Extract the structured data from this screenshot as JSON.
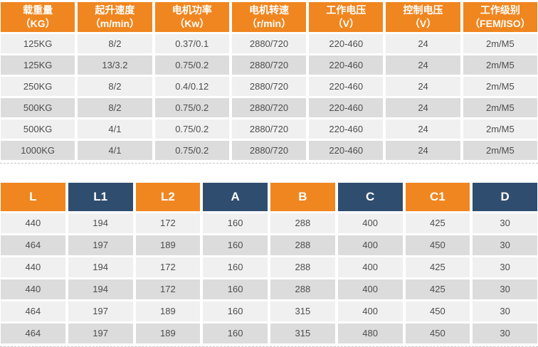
{
  "colors": {
    "orange": "#F0861F",
    "navy": "#2F4D6F",
    "row_light": "#F0F0F0",
    "row_dark": "#DCDCDC",
    "cell_text": "#4D4D4F",
    "header_text": "#FFFFFF",
    "dash": "#C4C4C4"
  },
  "spec_table": {
    "columns": [
      {
        "label": "载重量",
        "unit": "（KG）"
      },
      {
        "label": "起升速度",
        "unit": "（m/min）"
      },
      {
        "label": "电机功率",
        "unit": "（Kw）"
      },
      {
        "label": "电机转速",
        "unit": "（r/min）"
      },
      {
        "label": "工作电压",
        "unit": "（V）"
      },
      {
        "label": "控制电压",
        "unit": "（V）"
      },
      {
        "label": "工作级别",
        "unit": "（FEM/ISO）"
      }
    ],
    "rows": [
      [
        "125KG",
        "8/2",
        "0.37/0.1",
        "2880/720",
        "220-460",
        "24",
        "2m/M5"
      ],
      [
        "125KG",
        "13/3.2",
        "0.75/0.2",
        "2880/720",
        "220-460",
        "24",
        "2m/M5"
      ],
      [
        "250KG",
        "8/2",
        "0.4/0.12",
        "2880/720",
        "220-460",
        "24",
        "2m/M5"
      ],
      [
        "500KG",
        "8/2",
        "0.75/0.2",
        "2880/720",
        "220-460",
        "24",
        "2m/M5"
      ],
      [
        "500KG",
        "4/1",
        "0.75/0.2",
        "2880/720",
        "220-460",
        "24",
        "2m/M5"
      ],
      [
        "1000KG",
        "4/1",
        "0.75/0.2",
        "2880/720",
        "220-460",
        "24",
        "2m/M5"
      ]
    ]
  },
  "dimension_table": {
    "columns": [
      "L",
      "L1",
      "L2",
      "A",
      "B",
      "C",
      "C1",
      "D"
    ],
    "rows": [
      [
        "440",
        "194",
        "172",
        "160",
        "288",
        "400",
        "425",
        "30"
      ],
      [
        "464",
        "197",
        "189",
        "160",
        "288",
        "400",
        "450",
        "30"
      ],
      [
        "440",
        "194",
        "172",
        "160",
        "288",
        "400",
        "425",
        "30"
      ],
      [
        "440",
        "194",
        "172",
        "160",
        "288",
        "400",
        "425",
        "30"
      ],
      [
        "464",
        "197",
        "189",
        "160",
        "315",
        "400",
        "450",
        "30"
      ],
      [
        "464",
        "197",
        "189",
        "160",
        "315",
        "480",
        "450",
        "30"
      ]
    ]
  }
}
